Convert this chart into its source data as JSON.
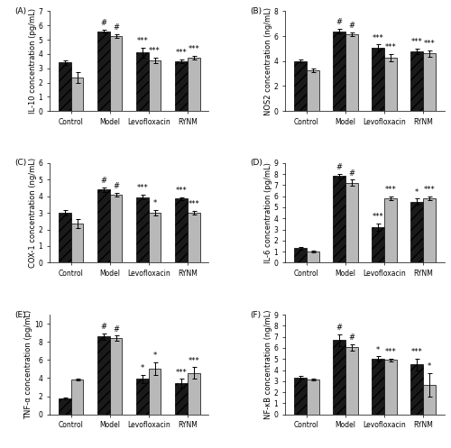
{
  "panels": [
    {
      "label": "(A)",
      "ylabel": "IL-10 concentration (pg/mL)",
      "ylim": [
        0,
        7
      ],
      "yticks": [
        0,
        1,
        2,
        3,
        4,
        5,
        6,
        7
      ],
      "groups": [
        "Control",
        "Model",
        "Levofloxacin",
        "RYNM"
      ],
      "black_vals": [
        3.4,
        5.6,
        4.1,
        3.5
      ],
      "gray_vals": [
        2.35,
        5.25,
        3.55,
        3.75
      ],
      "black_err": [
        0.15,
        0.12,
        0.35,
        0.12
      ],
      "gray_err": [
        0.35,
        0.12,
        0.18,
        0.12
      ],
      "black_annot": [
        "",
        "#",
        "***",
        "***"
      ],
      "gray_annot": [
        "",
        "#",
        "***",
        "***"
      ]
    },
    {
      "label": "(B)",
      "ylabel": "NOS2 concentration (ng/mL)",
      "ylim": [
        0,
        8
      ],
      "yticks": [
        0,
        2,
        4,
        6,
        8
      ],
      "groups": [
        "Control",
        "Model",
        "Levofloxacin",
        "RYNM"
      ],
      "black_vals": [
        4.0,
        6.4,
        5.05,
        4.8
      ],
      "gray_vals": [
        3.25,
        6.15,
        4.3,
        4.6
      ],
      "black_err": [
        0.1,
        0.18,
        0.28,
        0.22
      ],
      "gray_err": [
        0.14,
        0.14,
        0.28,
        0.28
      ],
      "black_annot": [
        "",
        "#",
        "***",
        "***"
      ],
      "gray_annot": [
        "",
        "#",
        "***",
        "***"
      ]
    },
    {
      "label": "(C)",
      "ylabel": "COX-1 concentration (ng/mL)",
      "ylim": [
        0,
        6
      ],
      "yticks": [
        0,
        1,
        2,
        3,
        4,
        5,
        6
      ],
      "groups": [
        "Control",
        "Model",
        "Levofloxacin",
        "RYNM"
      ],
      "black_vals": [
        3.0,
        4.4,
        3.95,
        3.85
      ],
      "gray_vals": [
        2.35,
        4.1,
        3.0,
        3.0
      ],
      "black_err": [
        0.14,
        0.14,
        0.14,
        0.1
      ],
      "gray_err": [
        0.28,
        0.1,
        0.18,
        0.1
      ],
      "black_annot": [
        "",
        "#",
        "***",
        "***"
      ],
      "gray_annot": [
        "",
        "#",
        "*",
        "***"
      ]
    },
    {
      "label": "(D)",
      "ylabel": "IL-6 concentration (pg/mL)",
      "ylim": [
        0,
        9
      ],
      "yticks": [
        0,
        1,
        2,
        3,
        4,
        5,
        6,
        7,
        8,
        9
      ],
      "groups": [
        "Control",
        "Model",
        "Levofloxacin",
        "RYNM"
      ],
      "black_vals": [
        1.3,
        7.8,
        3.2,
        5.5
      ],
      "gray_vals": [
        1.0,
        7.2,
        5.8,
        5.8
      ],
      "black_err": [
        0.14,
        0.22,
        0.32,
        0.28
      ],
      "gray_err": [
        0.1,
        0.28,
        0.18,
        0.18
      ],
      "black_annot": [
        "",
        "#",
        "***",
        "*"
      ],
      "gray_annot": [
        "",
        "#",
        "***",
        "***"
      ]
    },
    {
      "label": "(E)",
      "ylabel": "TNF-α concentration (pg/mL)",
      "ylim": [
        0,
        11
      ],
      "yticks": [
        0,
        2,
        4,
        6,
        8,
        10
      ],
      "groups": [
        "Control",
        "Model",
        "Levofloxacin",
        "RYNM"
      ],
      "black_vals": [
        1.75,
        8.6,
        3.9,
        3.45
      ],
      "gray_vals": [
        3.85,
        8.4,
        5.05,
        4.55
      ],
      "black_err": [
        0.1,
        0.35,
        0.45,
        0.45
      ],
      "gray_err": [
        0.14,
        0.28,
        0.7,
        0.65
      ],
      "black_annot": [
        "",
        "#",
        "*",
        "***"
      ],
      "gray_annot": [
        "",
        "#",
        "*",
        "***"
      ]
    },
    {
      "label": "(F)",
      "ylabel": "NF-κB concentration (ng/mL)",
      "ylim": [
        0,
        9
      ],
      "yticks": [
        0,
        1,
        2,
        3,
        4,
        5,
        6,
        7,
        8,
        9
      ],
      "groups": [
        "Control",
        "Model",
        "Levofloxacin",
        "RYNM"
      ],
      "black_vals": [
        3.35,
        6.7,
        5.05,
        4.5
      ],
      "gray_vals": [
        3.15,
        6.05,
        4.9,
        2.65
      ],
      "black_err": [
        0.14,
        0.55,
        0.18,
        0.55
      ],
      "gray_err": [
        0.1,
        0.28,
        0.14,
        1.05
      ],
      "black_annot": [
        "",
        "#",
        "*",
        "***"
      ],
      "gray_annot": [
        "",
        "#",
        "***",
        "*"
      ]
    }
  ],
  "black_color": "#1a1a1a",
  "gray_color": "#b8b8b8",
  "bar_width": 0.32,
  "font_size": 6.0,
  "tick_font_size": 5.5,
  "annot_font_size": 6.0,
  "label_font_size": 6.5,
  "ylabel_fontsize": 6.0
}
